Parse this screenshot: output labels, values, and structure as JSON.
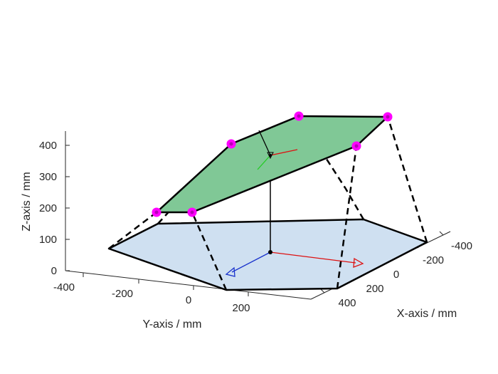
{
  "figure": {
    "x_axis_label": "X-axis / mm",
    "y_axis_label": "Y-axis / mm",
    "z_axis_label": "Z-axis / mm",
    "x_ticks": [
      "-400",
      "-200",
      "0",
      "200",
      "400"
    ],
    "y_ticks": [
      "-400",
      "-200",
      "0",
      "200"
    ],
    "z_ticks": [
      "0",
      "100",
      "200",
      "300",
      "400"
    ],
    "colors": {
      "base_fill": "#cfe0f1",
      "platform_fill": "#80c896",
      "joint": "#ff00ff",
      "x_arrow": "#dd1111",
      "y_arrow": "#1a33cc",
      "z_frame_green": "#22cc22"
    }
  }
}
